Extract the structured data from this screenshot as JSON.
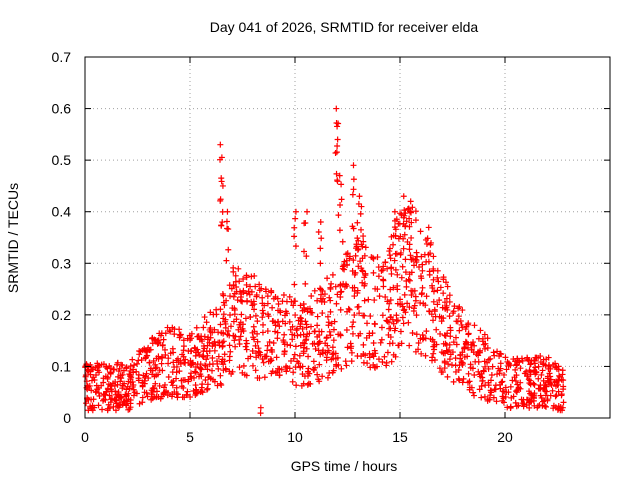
{
  "chart_data": {
    "type": "scatter",
    "title": "Day 041 of 2026, SRMTID for receiver elda",
    "xlabel": "GPS time / hours",
    "ylabel": "SRMTID / TECUs",
    "xlim": [
      0,
      25
    ],
    "ylim": [
      0,
      0.7
    ],
    "x_ticks": [
      0,
      5,
      10,
      15,
      20
    ],
    "x_tick_labels": [
      "0",
      "5",
      "10",
      "15",
      "20"
    ],
    "y_ticks": [
      0,
      0.1,
      0.2,
      0.3,
      0.4,
      0.5,
      0.6,
      0.7
    ],
    "y_tick_labels": [
      "0",
      "0.1",
      "0.2",
      "0.3",
      "0.4",
      "0.5",
      "0.6",
      "0.7"
    ],
    "grid": true,
    "marker": "plus",
    "series_color": "#ff0000",
    "envelope": {
      "x": [
        0,
        1,
        2,
        3,
        4,
        5,
        5.5,
        6,
        6.5,
        7,
        8,
        9,
        10,
        10.5,
        11,
        12,
        13,
        14,
        14.5,
        15,
        15.5,
        16,
        16.5,
        17,
        18,
        19,
        20,
        21,
        22,
        22.8
      ],
      "y": [
        0.06,
        0.06,
        0.06,
        0.09,
        0.11,
        0.1,
        0.12,
        0.13,
        0.15,
        0.19,
        0.18,
        0.16,
        0.15,
        0.14,
        0.16,
        0.19,
        0.23,
        0.2,
        0.22,
        0.27,
        0.28,
        0.26,
        0.24,
        0.18,
        0.13,
        0.1,
        0.07,
        0.07,
        0.07,
        0.05
      ]
    },
    "spikes": [
      {
        "x": 6.5,
        "y": 0.53
      },
      {
        "x": 6.5,
        "y": 0.45
      },
      {
        "x": 6.8,
        "y": 0.4
      },
      {
        "x": 10.0,
        "y": 0.4
      },
      {
        "x": 10.5,
        "y": 0.4
      },
      {
        "x": 11.2,
        "y": 0.38
      },
      {
        "x": 12.0,
        "y": 0.6
      },
      {
        "x": 12.0,
        "y": 0.54
      },
      {
        "x": 12.2,
        "y": 0.47
      },
      {
        "x": 12.8,
        "y": 0.49
      },
      {
        "x": 13.0,
        "y": 0.43
      },
      {
        "x": 13.2,
        "y": 0.41
      },
      {
        "x": 14.8,
        "y": 0.4
      },
      {
        "x": 15.2,
        "y": 0.43
      },
      {
        "x": 15.5,
        "y": 0.42
      },
      {
        "x": 8.4,
        "y": 0.02
      }
    ]
  }
}
